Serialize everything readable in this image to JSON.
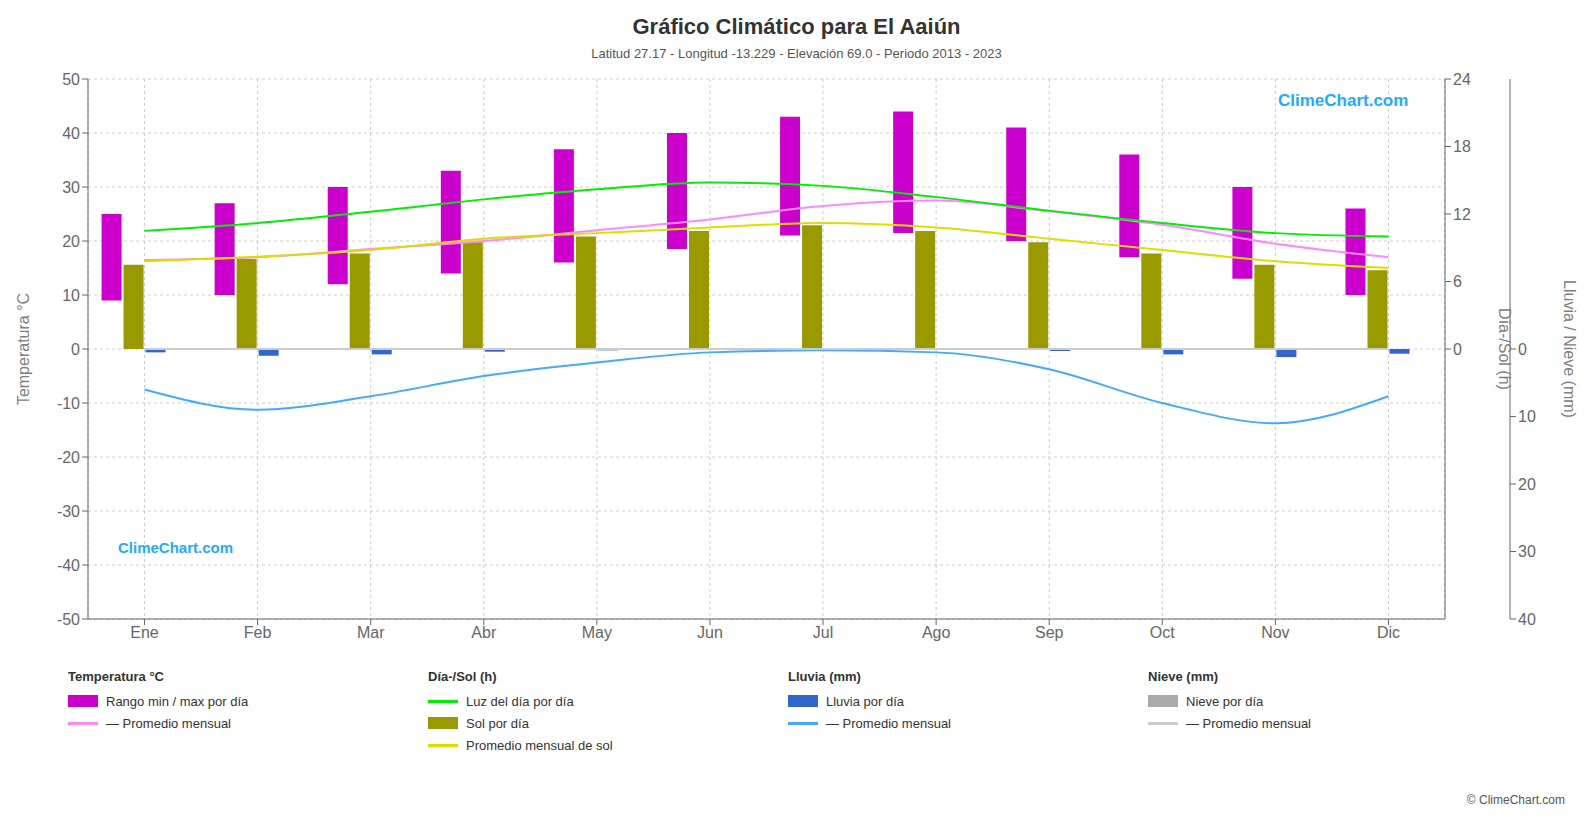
{
  "chart_data": {
    "type": "bar",
    "title": "Gráfico Climático para El Aaiún",
    "subtitle": "Latitud 27.17 - Longitud -13.229 - Elevación 69.0 - Periodo 2013 - 2023",
    "categories": [
      "Ene",
      "Feb",
      "Mar",
      "Abr",
      "May",
      "Jun",
      "Jul",
      "Ago",
      "Sep",
      "Oct",
      "Nov",
      "Dic"
    ],
    "y_label": "Temperatura °C",
    "y2_label": "Día-/Sol (h)",
    "y3_label": "Lluvia / Nieve (mm)",
    "ylim": [
      -50,
      50
    ],
    "yticks": [
      -50,
      -40,
      -30,
      -20,
      -10,
      0,
      10,
      20,
      30,
      40,
      50
    ],
    "y2lim": [
      -24,
      24
    ],
    "y2ticks": [
      0,
      6,
      12,
      18,
      24
    ],
    "y3lim": [
      40,
      -40
    ],
    "y3ticks": [
      0,
      10,
      20,
      30,
      40
    ],
    "grid": true,
    "legend": "bottom",
    "annotations": [
      "ClimeChart.com",
      "ClimeChart.com",
      "© ClimeChart.com"
    ],
    "series": [
      {
        "name": "Rango min / max por día",
        "group": "Temperatura °C",
        "type": "bar",
        "color": "#cc00cc",
        "axis": "y",
        "low": [
          9.0,
          10.0,
          12.0,
          14.0,
          16.0,
          18.5,
          21.0,
          21.5,
          20.0,
          17.0,
          13.0,
          10.0
        ],
        "high": [
          25.0,
          27.0,
          30.0,
          33.0,
          37.0,
          40.0,
          43.0,
          44.0,
          41.0,
          36.0,
          30.0,
          26.0
        ]
      },
      {
        "name": "— Promedio mensual",
        "group": "Temperatura °C",
        "type": "line",
        "color": "#ff88ff",
        "axis": "y",
        "values": [
          16.5,
          17.0,
          18.5,
          20.0,
          22.0,
          24.0,
          26.5,
          27.5,
          25.5,
          23.0,
          19.5,
          17.0
        ]
      },
      {
        "name": "Luz del día por día",
        "group": "Día-/Sol (h)",
        "type": "line",
        "color": "#00ee00",
        "axis": "y2",
        "values": [
          10.5,
          11.2,
          12.2,
          13.3,
          14.2,
          14.8,
          14.5,
          13.5,
          12.3,
          11.2,
          10.3,
          10.0
        ]
      },
      {
        "name": "Sol por día",
        "group": "Día-/Sol (h)",
        "type": "bar",
        "color": "#999900",
        "axis": "y2",
        "values": [
          7.5,
          8.0,
          8.5,
          9.5,
          10.0,
          10.5,
          11.0,
          10.5,
          9.5,
          8.5,
          7.5,
          7.0
        ]
      },
      {
        "name": "Promedio mensual de sol",
        "group": "Día-/Sol (h)",
        "type": "line",
        "color": "#dddd00",
        "axis": "y2",
        "values": [
          7.8,
          8.2,
          8.8,
          9.8,
          10.3,
          10.8,
          11.2,
          10.8,
          9.8,
          8.8,
          7.8,
          7.2
        ]
      },
      {
        "name": "Lluvia por día",
        "group": "Lluvia (mm)",
        "type": "bar",
        "color": "#3366cc",
        "axis": "y3",
        "values": [
          0.5,
          1.0,
          0.8,
          0.4,
          0.2,
          0.05,
          0.02,
          0.05,
          0.3,
          0.8,
          1.2,
          0.7
        ]
      },
      {
        "name": "— Promedio mensual",
        "group": "Lluvia (mm)",
        "type": "line",
        "color": "#44aaff",
        "axis": "y3",
        "values": [
          6.0,
          9.0,
          7.0,
          4.0,
          2.0,
          0.5,
          0.2,
          0.5,
          3.0,
          8.0,
          11.0,
          7.0
        ]
      },
      {
        "name": "Nieve por día",
        "group": "Nieve (mm)",
        "type": "bar",
        "color": "#aaaaaa",
        "axis": "y3",
        "values": [
          0.0,
          0.0,
          0.0,
          0.0,
          0.0,
          0.0,
          0.0,
          0.0,
          0.0,
          0.0,
          0.0,
          0.0
        ]
      },
      {
        "name": "— Promedio mensual",
        "group": "Nieve (mm)",
        "type": "line",
        "color": "#cccccc",
        "axis": "y3",
        "values": [
          0.0,
          0.0,
          0.0,
          0.0,
          0.0,
          0.0,
          0.0,
          0.0,
          0.0,
          0.0,
          0.0,
          0.0
        ]
      }
    ]
  }
}
